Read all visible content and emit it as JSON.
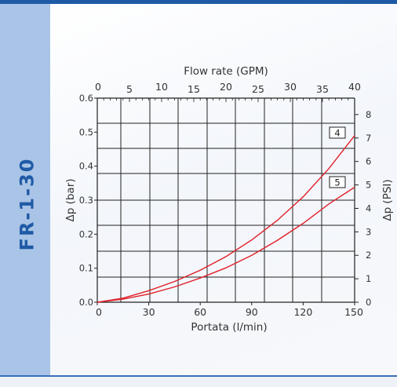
{
  "sidebar": {
    "title": "FR-1-30"
  },
  "chart_data": {
    "type": "line",
    "xlabel": "Portata (l/min)",
    "x_top_label": "Flow rate (GPM)",
    "ylabel": "Δp (bar)",
    "y_right_label": "Δp (PSI)",
    "xlim": [
      0,
      150
    ],
    "ylim": [
      0,
      0.6
    ],
    "x_ticks": [
      0,
      30,
      60,
      90,
      120,
      150
    ],
    "x_tick_labels": [
      "0",
      "30",
      "60",
      "90",
      "120",
      "150"
    ],
    "x_top_ticks": [
      0,
      5,
      10,
      15,
      20,
      25,
      30,
      35,
      40
    ],
    "x_top_tick_labels": [
      "0",
      "5",
      "10",
      "15",
      "20",
      "25",
      "30",
      "35",
      "40"
    ],
    "y_ticks": [
      0,
      0.1,
      0.2,
      0.3,
      0.4,
      0.5,
      0.6
    ],
    "y_tick_labels": [
      "0.0",
      "0.1",
      "0.2",
      "0.3",
      "0.4",
      "0.5",
      "0.6"
    ],
    "y_right_ticks": [
      0,
      1,
      2,
      3,
      4,
      5,
      6,
      7,
      8
    ],
    "y_right_tick_labels": [
      "0",
      "1",
      "2",
      "3",
      "4",
      "5",
      "6",
      "7",
      "8"
    ],
    "grid": true,
    "series": [
      {
        "name": "4",
        "color": "#e0202a",
        "x": [
          0,
          15,
          30,
          45,
          60,
          75,
          90,
          105,
          120,
          135,
          150
        ],
        "y": [
          0.0,
          0.012,
          0.034,
          0.061,
          0.094,
          0.134,
          0.183,
          0.241,
          0.31,
          0.393,
          0.49
        ]
      },
      {
        "name": "5",
        "color": "#e0202a",
        "x": [
          0,
          15,
          30,
          45,
          60,
          75,
          90,
          105,
          120,
          135,
          150
        ],
        "y": [
          0.0,
          0.009,
          0.024,
          0.045,
          0.071,
          0.101,
          0.138,
          0.182,
          0.232,
          0.289,
          0.338
        ]
      }
    ]
  }
}
